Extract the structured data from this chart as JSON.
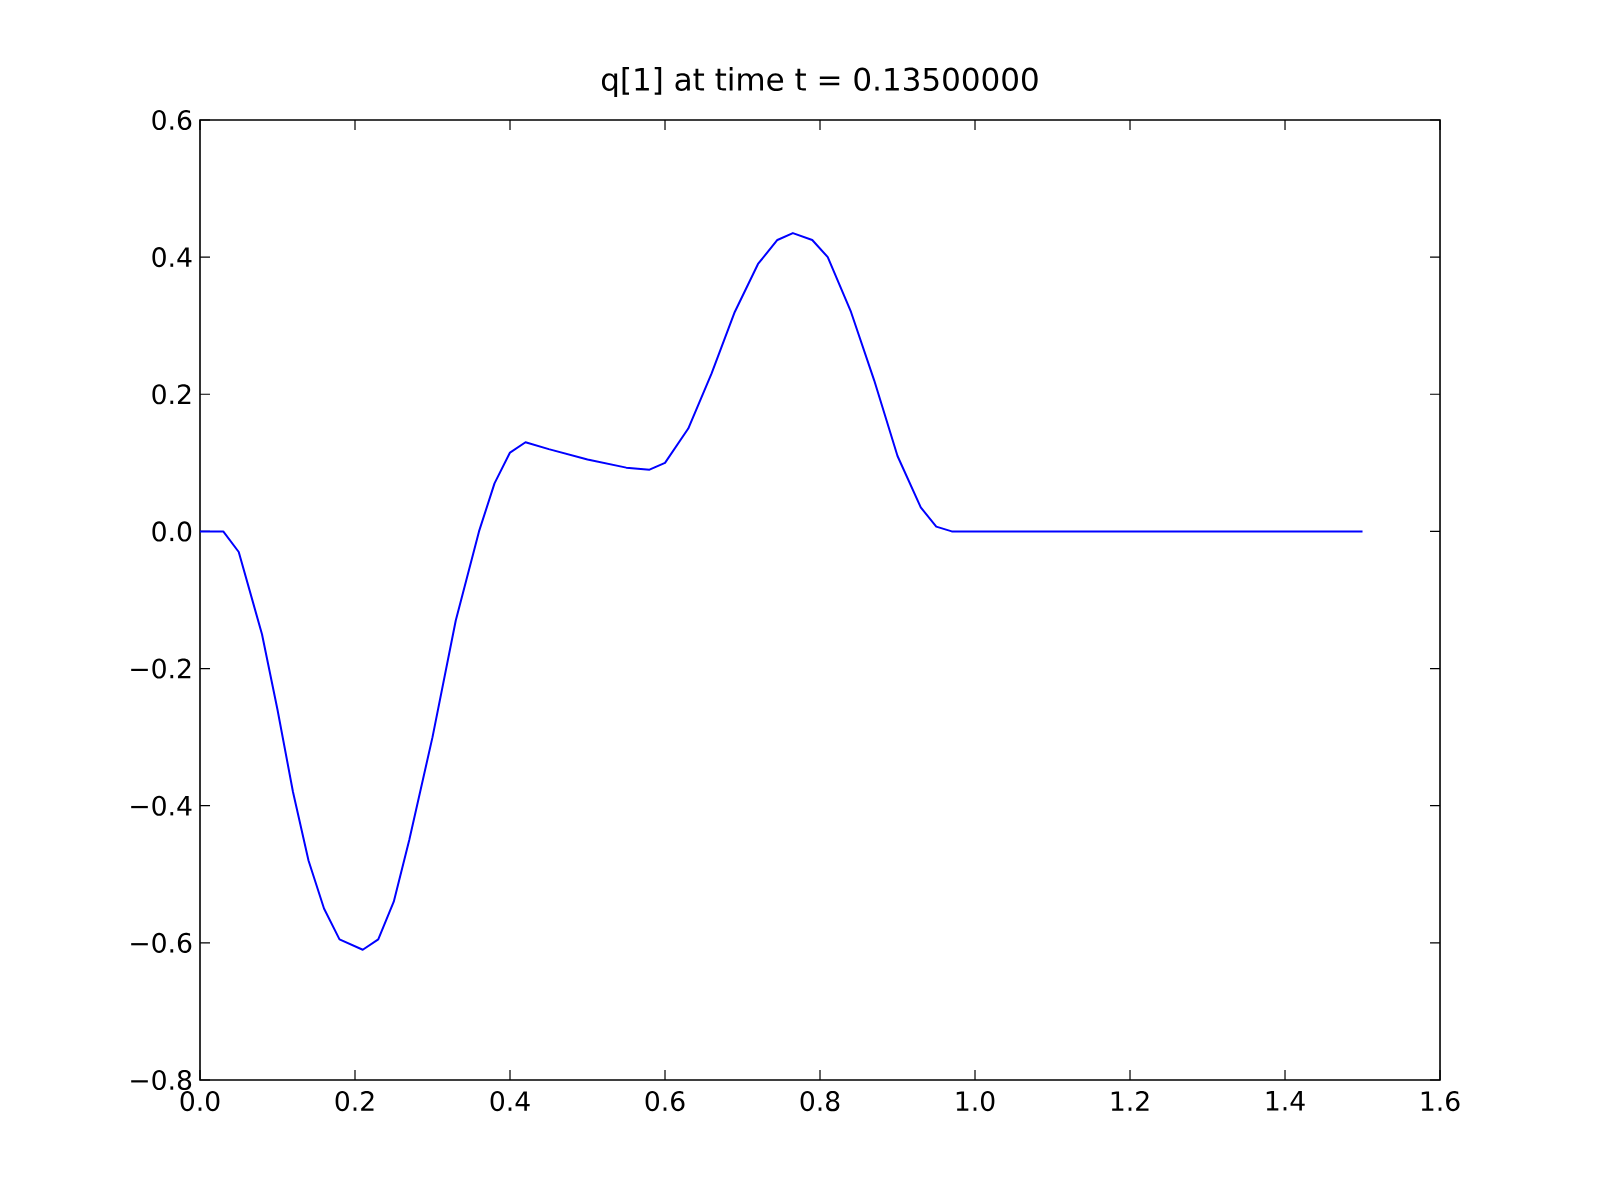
{
  "chart_data": {
    "type": "line",
    "title": "q[1] at time t =     0.13500000",
    "x": [
      0,
      0.03,
      0.05,
      0.08,
      0.1,
      0.12,
      0.14,
      0.16,
      0.18,
      0.21,
      0.23,
      0.25,
      0.27,
      0.3,
      0.33,
      0.36,
      0.38,
      0.4,
      0.42,
      0.45,
      0.5,
      0.55,
      0.58,
      0.6,
      0.63,
      0.66,
      0.69,
      0.72,
      0.745,
      0.765,
      0.79,
      0.81,
      0.84,
      0.87,
      0.9,
      0.93,
      0.95,
      0.97,
      1.5
    ],
    "series": [
      {
        "color": "#0000ff",
        "values": [
          0,
          0,
          -0.03,
          -0.15,
          -0.26,
          -0.38,
          -0.48,
          -0.55,
          -0.595,
          -0.61,
          -0.595,
          -0.54,
          -0.45,
          -0.3,
          -0.13,
          0.0,
          0.07,
          0.115,
          0.13,
          0.12,
          0.105,
          0.093,
          0.09,
          0.1,
          0.15,
          0.23,
          0.32,
          0.39,
          0.425,
          0.435,
          0.425,
          0.4,
          0.32,
          0.22,
          0.11,
          0.035,
          0.007,
          0,
          0
        ]
      }
    ],
    "xlim": [
      0,
      1.6
    ],
    "ylim": [
      -0.8,
      0.6
    ],
    "xticks": [
      {
        "value": 0,
        "label": "0.0"
      },
      {
        "value": 0.2,
        "label": "0.2"
      },
      {
        "value": 0.4,
        "label": "0.4"
      },
      {
        "value": 0.6,
        "label": "0.6"
      },
      {
        "value": 0.8,
        "label": "0.8"
      },
      {
        "value": 1.0,
        "label": "1.0"
      },
      {
        "value": 1.2,
        "label": "1.2"
      },
      {
        "value": 1.4,
        "label": "1.4"
      },
      {
        "value": 1.6,
        "label": "1.6"
      }
    ],
    "yticks": [
      {
        "value": -0.8,
        "label": "−0.8"
      },
      {
        "value": -0.6,
        "label": "−0.6"
      },
      {
        "value": -0.4,
        "label": "−0.4"
      },
      {
        "value": -0.2,
        "label": "−0.2"
      },
      {
        "value": 0.0,
        "label": "0.0"
      },
      {
        "value": 0.2,
        "label": "0.2"
      },
      {
        "value": 0.4,
        "label": "0.4"
      },
      {
        "value": 0.6,
        "label": "0.6"
      }
    ],
    "marker": "none",
    "line_style": "solid"
  }
}
